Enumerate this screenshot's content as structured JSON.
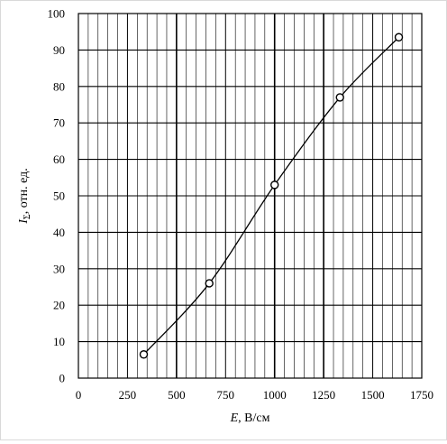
{
  "chart_data": {
    "type": "line",
    "title": "",
    "xlabel_var": "E",
    "xlabel_unit": ", В/см",
    "ylabel_var": "I",
    "ylabel_sub": "Σ",
    "ylabel_unit": ", отн. ед.",
    "xlim": [
      0,
      1750
    ],
    "ylim": [
      0,
      100
    ],
    "x_major_ticks": [
      0,
      250,
      500,
      750,
      1000,
      1250,
      1500,
      1750
    ],
    "x_tick_labels": [
      "0",
      "250",
      "500",
      "750",
      "1000",
      "1250",
      "1500",
      "1750"
    ],
    "y_major_ticks": [
      0,
      10,
      20,
      30,
      40,
      50,
      60,
      70,
      80,
      90,
      100
    ],
    "y_tick_labels": [
      "0",
      "10",
      "20",
      "30",
      "40",
      "50",
      "60",
      "70",
      "80",
      "90",
      "100"
    ],
    "x_minor_step": 50,
    "bold_x_gridlines": [
      500,
      1000,
      1250
    ],
    "grid": true,
    "legend": "none",
    "marker": "open-circle",
    "series": [
      {
        "x": [
          333,
          667,
          1000,
          1333,
          1633
        ],
        "y": [
          6.5,
          26,
          53,
          77,
          93.5
        ]
      }
    ],
    "colors": {
      "line": "#000000",
      "grid": "#000000",
      "background": "#ffffff"
    }
  }
}
